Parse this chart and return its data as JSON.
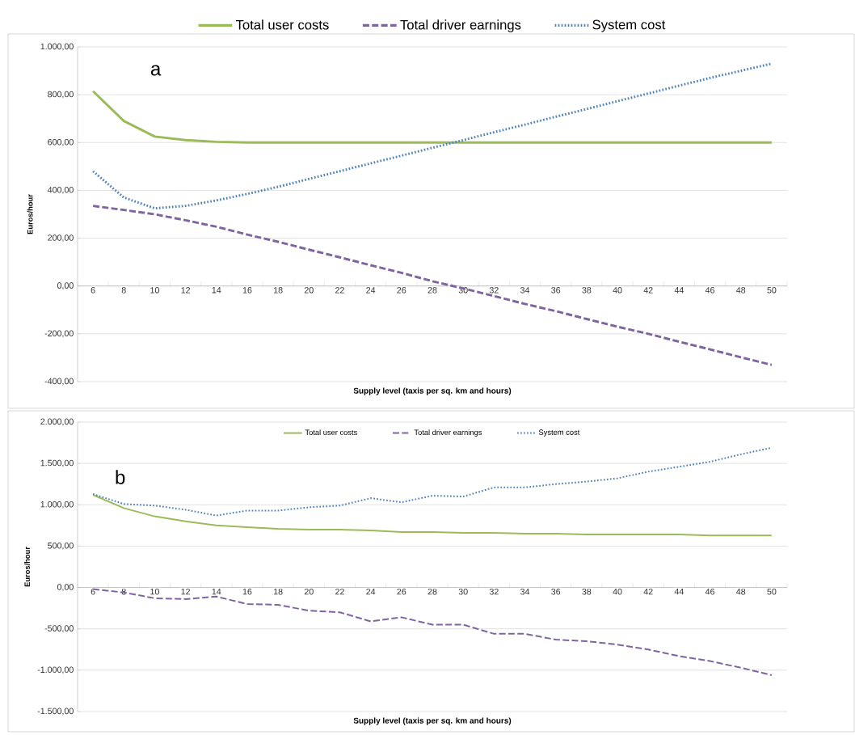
{
  "chart_data": [
    {
      "type": "line",
      "xlabel": "Supply level (taxis per sq. km and hours)",
      "ylabel": "Euros/hour",
      "annotations": [
        "a"
      ],
      "categories": [
        "6",
        "8",
        "10",
        "12",
        "14",
        "16",
        "18",
        "20",
        "22",
        "24",
        "26",
        "28",
        "30",
        "32",
        "34",
        "36",
        "38",
        "40",
        "42",
        "44",
        "46",
        "48",
        "50"
      ],
      "series": [
        {
          "name": "Total user costs",
          "color": "#9bbb59",
          "line_style": "solid",
          "values": [
            815,
            690,
            625,
            610,
            603,
            600,
            600,
            600,
            600,
            600,
            600,
            600,
            600,
            600,
            600,
            600,
            600,
            600,
            600,
            600,
            600,
            600,
            600
          ]
        },
        {
          "name": "Total driver earnings",
          "color": "#8064a2",
          "line_style": "dashed",
          "values": [
            335,
            318,
            300,
            275,
            248,
            215,
            185,
            152,
            120,
            87,
            55,
            20,
            -10,
            -42,
            -75,
            -105,
            -138,
            -170,
            -200,
            -233,
            -265,
            -298,
            -330
          ]
        },
        {
          "name": "System cost",
          "color": "#4f81bd",
          "line_style": "dotted",
          "values": [
            480,
            370,
            325,
            335,
            358,
            385,
            415,
            448,
            480,
            513,
            545,
            578,
            610,
            643,
            675,
            708,
            740,
            773,
            805,
            838,
            870,
            900,
            930
          ]
        }
      ],
      "ylim": [
        -400,
        1000
      ],
      "yticks": [
        {
          "value": -400,
          "label": "-400,00"
        },
        {
          "value": -200,
          "label": "-200,00"
        },
        {
          "value": 0,
          "label": "0,00"
        },
        {
          "value": 200,
          "label": "200,00"
        },
        {
          "value": 400,
          "label": "400,00"
        },
        {
          "value": 600,
          "label": "600,00"
        },
        {
          "value": 800,
          "label": "800,00"
        },
        {
          "value": 1000,
          "label": "1.000,00"
        }
      ],
      "grid": "y",
      "legend": "top",
      "marker": "none"
    },
    {
      "type": "line",
      "xlabel": "Supply level (taxis per sq. km and hours)",
      "ylabel": "Euros/hour",
      "annotations": [
        "b"
      ],
      "categories": [
        "6",
        "8",
        "10",
        "12",
        "14",
        "16",
        "18",
        "20",
        "22",
        "24",
        "26",
        "28",
        "30",
        "32",
        "34",
        "36",
        "38",
        "40",
        "42",
        "44",
        "46",
        "48",
        "50"
      ],
      "series": [
        {
          "name": "Total user costs",
          "color": "#9bbb59",
          "line_style": "solid",
          "values": [
            1120,
            960,
            860,
            800,
            750,
            730,
            710,
            700,
            700,
            690,
            670,
            670,
            660,
            660,
            650,
            650,
            640,
            640,
            640,
            640,
            630,
            630,
            630
          ]
        },
        {
          "name": "Total driver earnings",
          "color": "#8064a2",
          "line_style": "dashed",
          "values": [
            -20,
            -60,
            -130,
            -140,
            -110,
            -200,
            -210,
            -280,
            -300,
            -410,
            -360,
            -450,
            -450,
            -560,
            -560,
            -630,
            -650,
            -690,
            -750,
            -830,
            -890,
            -970,
            -1060
          ]
        },
        {
          "name": "System cost",
          "color": "#4f81bd",
          "line_style": "dotted",
          "values": [
            1130,
            1010,
            990,
            940,
            870,
            930,
            930,
            970,
            990,
            1080,
            1030,
            1110,
            1100,
            1210,
            1210,
            1250,
            1280,
            1320,
            1400,
            1460,
            1520,
            1610,
            1690
          ]
        }
      ],
      "ylim": [
        -1500,
        2000
      ],
      "yticks": [
        {
          "value": -1500,
          "label": "-1.500,00"
        },
        {
          "value": -1000,
          "label": "-1.000,00"
        },
        {
          "value": -500,
          "label": "-500,00"
        },
        {
          "value": 0,
          "label": "0,00"
        },
        {
          "value": 500,
          "label": "500,00"
        },
        {
          "value": 1000,
          "label": "1.000,00"
        },
        {
          "value": 1500,
          "label": "1.500,00"
        },
        {
          "value": 2000,
          "label": "2.000,00"
        }
      ],
      "grid": "y",
      "legend": "top",
      "marker": "none"
    }
  ]
}
